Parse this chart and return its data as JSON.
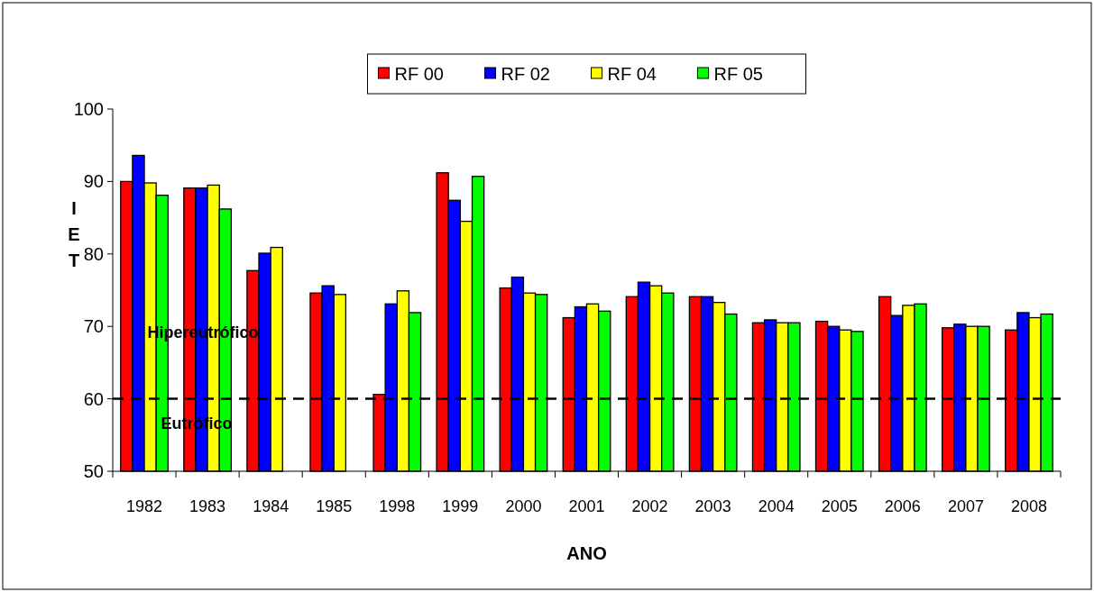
{
  "chart_data": {
    "type": "bar",
    "xlabel": "ANO",
    "ylabel": "IET",
    "categories": [
      "1982",
      "1983",
      "1984",
      "1985",
      "1998",
      "1999",
      "2000",
      "2001",
      "2002",
      "2003",
      "2004",
      "2005",
      "2006",
      "2007",
      "2008"
    ],
    "series": [
      {
        "name": "RF 00",
        "color": "#ff0000",
        "values": [
          90.0,
          89.1,
          77.7,
          74.6,
          60.6,
          91.2,
          75.3,
          71.2,
          74.1,
          74.1,
          70.5,
          70.7,
          74.1,
          69.8,
          69.5
        ]
      },
      {
        "name": "RF 02",
        "color": "#0000ff",
        "values": [
          93.6,
          89.1,
          80.1,
          75.6,
          73.1,
          87.4,
          76.8,
          72.7,
          76.1,
          74.1,
          70.9,
          70.0,
          71.5,
          70.3,
          71.9
        ]
      },
      {
        "name": "RF 04",
        "color": "#ffff00",
        "values": [
          89.8,
          89.5,
          80.9,
          74.4,
          74.9,
          84.5,
          74.6,
          73.1,
          75.6,
          73.3,
          70.5,
          69.5,
          72.9,
          70.0,
          71.2
        ]
      },
      {
        "name": "RF 05",
        "color": "#00ff00",
        "values": [
          88.1,
          86.2,
          null,
          null,
          71.9,
          90.7,
          74.4,
          72.1,
          74.6,
          71.7,
          70.5,
          69.3,
          73.1,
          70.0,
          71.7
        ]
      }
    ],
    "ylim": [
      50,
      100
    ],
    "yticks": [
      50,
      60,
      70,
      80,
      90,
      100
    ],
    "grid": false,
    "legend": "top",
    "ref_lines": [
      {
        "axis": "y",
        "value": 60,
        "color": "#000000",
        "line_style": "dashed"
      }
    ],
    "annotations": [
      "Hipereutrófico",
      "Eutrófico"
    ]
  }
}
